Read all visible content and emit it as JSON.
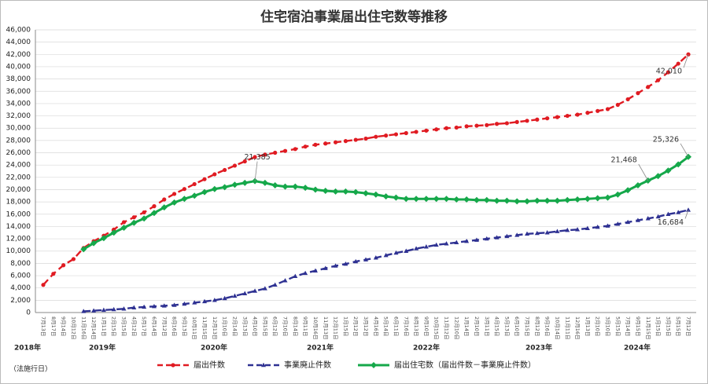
{
  "chart_data": {
    "type": "line",
    "title": "住宅宿泊事業届出住宅数等推移",
    "note": "（法施行日）",
    "year_labels": [
      "2018年",
      "2019年",
      "2020年",
      "2021年",
      "2022年",
      "2023年",
      "2024年"
    ],
    "categories": [
      "7月13日",
      "8月17日",
      "9月14日",
      "10月12日",
      "11月16日",
      "12月14日",
      "1月11日",
      "2月15日",
      "3月15日",
      "4月12日",
      "5月17日",
      "6月14日",
      "7月12日",
      "8月16日",
      "9月13日",
      "10月11日",
      "11月15日",
      "12月13日",
      "1月10日",
      "2月14日",
      "3月13日",
      "4月10日",
      "5月15日",
      "6月12日",
      "7月10日",
      "8月14日",
      "9月11日",
      "10月16日",
      "11月13日",
      "12月11日",
      "1月15日",
      "2月12日",
      "3月12日",
      "4月16日",
      "5月14日",
      "6月11日",
      "7月16日",
      "8月13日",
      "9月10日",
      "10月15日",
      "11月12日",
      "12月10日",
      "1月14日",
      "2月10日",
      "3月11日",
      "4月15日",
      "5月13日",
      "6月10日",
      "7月15日",
      "8月12日",
      "9月16日",
      "10月14日",
      "11月11日",
      "12月16日",
      "1月13日",
      "2月10日",
      "3月10日",
      "5月15日",
      "7月14日",
      "9月15日",
      "11月15日",
      "1月15日",
      "3月15日",
      "5月15日",
      "7月12日"
    ],
    "series": [
      {
        "name": "届出件数",
        "color": "#e01b22",
        "dash": true,
        "marker": "circle",
        "values": [
          4500,
          6300,
          7700,
          8700,
          10500,
          11600,
          12500,
          13500,
          14700,
          15500,
          16300,
          17300,
          18400,
          19300,
          20100,
          20900,
          21700,
          22500,
          23200,
          23900,
          24600,
          25300,
          25700,
          26000,
          26300,
          26600,
          27000,
          27300,
          27500,
          27700,
          27900,
          28100,
          28300,
          28600,
          28800,
          29000,
          29200,
          29400,
          29600,
          29800,
          30000,
          30100,
          30300,
          30400,
          30500,
          30700,
          30800,
          31000,
          31200,
          31400,
          31600,
          31800,
          32000,
          32200,
          32500,
          32800,
          33100,
          33800,
          34700,
          35700,
          36700,
          37800,
          39100,
          40500,
          42010
        ],
        "value_labels": [
          null,
          null,
          null,
          null,
          null,
          null,
          null,
          null,
          null,
          null,
          null,
          null,
          null,
          null,
          null,
          null,
          null,
          null,
          null,
          null,
          null,
          null,
          null,
          null,
          null,
          null,
          null,
          null,
          null,
          null,
          null,
          null,
          null,
          null,
          null,
          null,
          null,
          null,
          null,
          null,
          null,
          null,
          null,
          null,
          null,
          null,
          null,
          null,
          null,
          null,
          null,
          null,
          null,
          null,
          null,
          null,
          null,
          null,
          null,
          null,
          null,
          null,
          null,
          null,
          "42,010"
        ]
      },
      {
        "name": "事業廃止件数",
        "color": "#2e3192",
        "dash": true,
        "marker": "triangle",
        "values": [
          null,
          null,
          null,
          null,
          200,
          300,
          400,
          500,
          600,
          800,
          900,
          1000,
          1100,
          1200,
          1400,
          1600,
          1800,
          2000,
          2300,
          2700,
          3100,
          3500,
          3900,
          4500,
          5200,
          5900,
          6400,
          6800,
          7200,
          7600,
          7900,
          8300,
          8600,
          8900,
          9300,
          9700,
          10000,
          10400,
          10700,
          11000,
          11200,
          11400,
          11600,
          11800,
          12000,
          12200,
          12400,
          12600,
          12800,
          12900,
          13000,
          13200,
          13400,
          13500,
          13700,
          13900,
          14100,
          14400,
          14700,
          15000,
          15300,
          15600,
          16000,
          16300,
          16684
        ],
        "value_labels": [
          null,
          null,
          null,
          null,
          null,
          null,
          null,
          null,
          null,
          null,
          null,
          null,
          null,
          null,
          null,
          null,
          null,
          null,
          null,
          null,
          null,
          null,
          null,
          null,
          null,
          null,
          null,
          null,
          null,
          null,
          null,
          null,
          null,
          null,
          null,
          null,
          null,
          null,
          null,
          null,
          null,
          null,
          null,
          null,
          null,
          null,
          null,
          null,
          null,
          null,
          null,
          null,
          null,
          null,
          null,
          null,
          null,
          null,
          null,
          null,
          null,
          null,
          null,
          null,
          "16,684"
        ]
      },
      {
        "name": "届出住宅数（届出件数－事業廃止件数）",
        "color": "#15a84a",
        "dash": false,
        "marker": "diamond",
        "values": [
          null,
          null,
          null,
          null,
          10300,
          11300,
          12100,
          13000,
          13800,
          14600,
          15300,
          16200,
          17100,
          17900,
          18500,
          19000,
          19600,
          20100,
          20400,
          20800,
          21100,
          21385,
          21100,
          20700,
          20500,
          20500,
          20300,
          20000,
          19800,
          19700,
          19700,
          19600,
          19400,
          19200,
          18900,
          18700,
          18500,
          18500,
          18500,
          18500,
          18500,
          18400,
          18400,
          18300,
          18300,
          18200,
          18200,
          18100,
          18100,
          18200,
          18200,
          18200,
          18300,
          18400,
          18500,
          18600,
          18700,
          19200,
          19900,
          20700,
          21468,
          22200,
          23100,
          24100,
          25326
        ],
        "value_labels": [
          null,
          null,
          null,
          null,
          null,
          null,
          null,
          null,
          null,
          null,
          null,
          null,
          null,
          null,
          null,
          null,
          null,
          null,
          null,
          null,
          null,
          "21,385",
          null,
          null,
          null,
          null,
          null,
          null,
          null,
          null,
          null,
          null,
          null,
          null,
          null,
          null,
          null,
          null,
          null,
          null,
          null,
          null,
          null,
          null,
          null,
          null,
          null,
          null,
          null,
          null,
          null,
          null,
          null,
          null,
          null,
          null,
          null,
          null,
          null,
          null,
          "21,468",
          null,
          null,
          null,
          "25,326"
        ]
      }
    ],
    "ylim": [
      0,
      46000
    ],
    "yticks": [
      0,
      {
        "value": 2000,
        "label": "2,000"
      },
      {
        "value": 4000,
        "label": "4,000"
      },
      {
        "value": 6000,
        "label": "6,000"
      },
      {
        "value": 8000,
        "label": "8,000"
      },
      {
        "value": 10000,
        "label": "10,000"
      },
      {
        "value": 12000,
        "label": "12,000"
      },
      {
        "value": 14000,
        "label": "14,000"
      },
      {
        "value": 16000,
        "label": "16,000"
      },
      {
        "value": 18000,
        "label": "18,000"
      },
      {
        "value": 20000,
        "label": "20,000"
      },
      {
        "value": 22000,
        "label": "22,000"
      },
      {
        "value": 24000,
        "label": "24,000"
      },
      {
        "value": 26000,
        "label": "26,000"
      },
      {
        "value": 28000,
        "label": "28,000"
      },
      {
        "value": 30000,
        "label": "30,000"
      },
      {
        "value": 32000,
        "label": "32,000"
      },
      {
        "value": 34000,
        "label": "34,000"
      },
      {
        "value": 36000,
        "label": "36,000"
      },
      {
        "value": 38000,
        "label": "38,000"
      },
      {
        "value": 40000,
        "label": "40,000"
      },
      {
        "value": 42000,
        "label": "42,000"
      },
      {
        "value": 44000,
        "label": "44,000"
      },
      {
        "value": 46000,
        "label": "46,000"
      }
    ],
    "grid": true
  }
}
